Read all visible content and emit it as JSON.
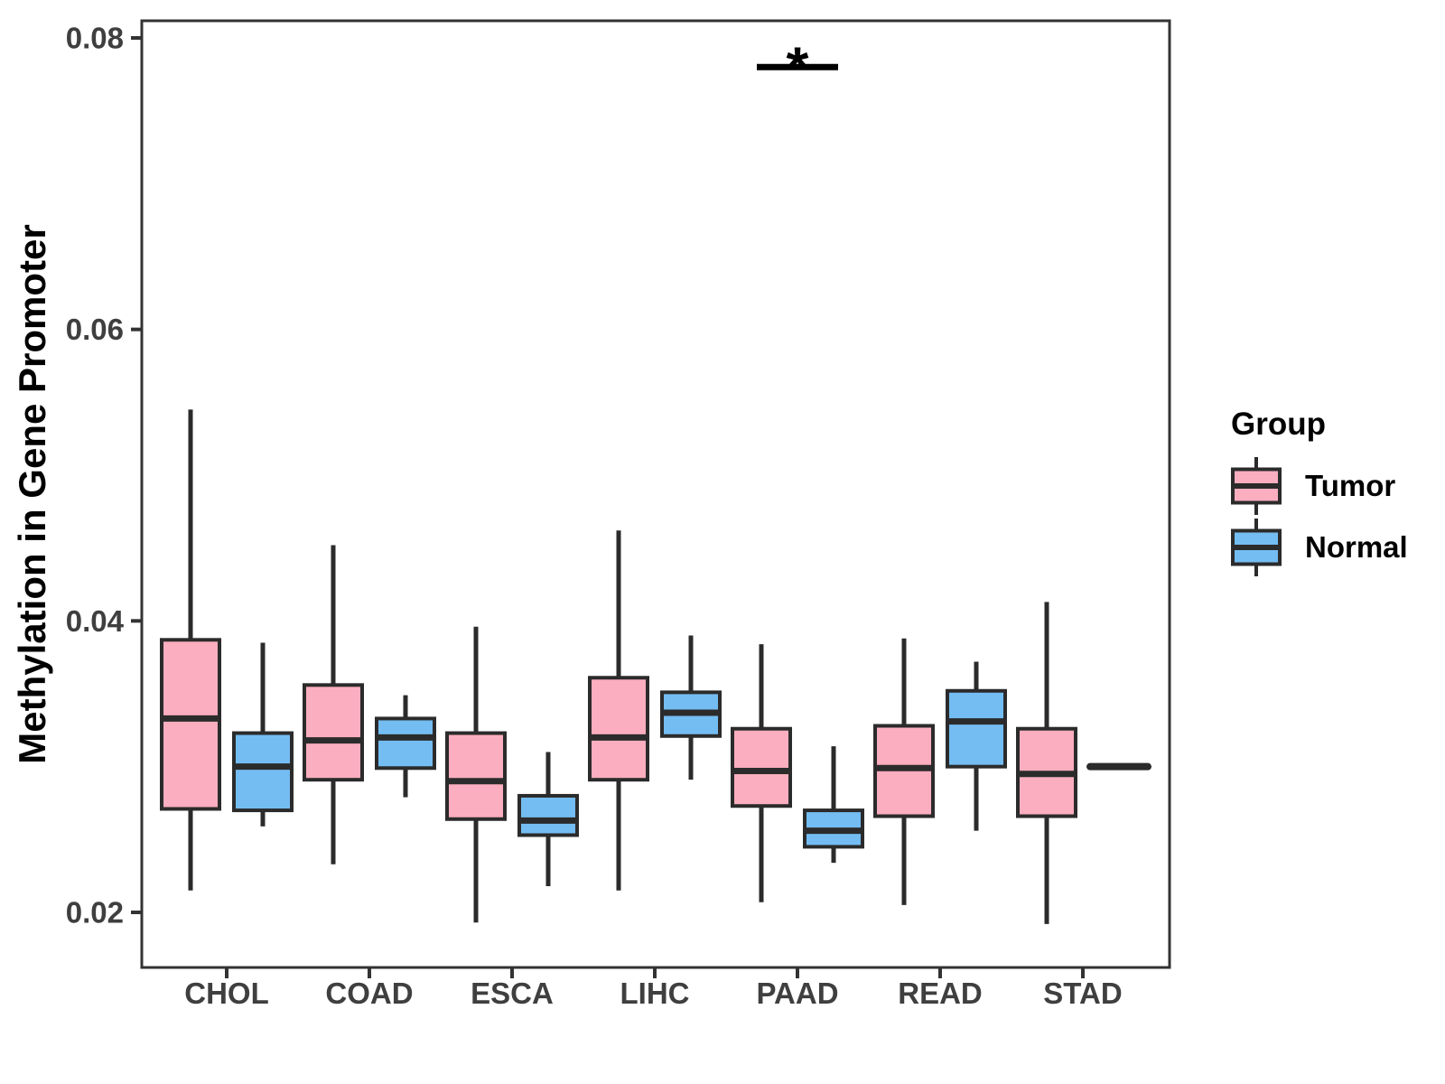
{
  "figure": {
    "y_axis_title": "Methylation in Gene Promoter",
    "legend": {
      "title": "Group",
      "items": [
        {
          "label": "Tumor",
          "color": "#FBAEBF"
        },
        {
          "label": "Normal",
          "color": "#74BDF2"
        }
      ]
    }
  },
  "chart_data": {
    "type": "boxplot",
    "title": "",
    "xlabel": "",
    "ylabel": "Methylation in Gene Promoter",
    "ylim": [
      0.0163,
      0.0812
    ],
    "grid": false,
    "legend_position": "right",
    "y_ticks": [
      {
        "label": "0.08",
        "value": 0.08
      },
      {
        "label": "0.06",
        "value": 0.06
      },
      {
        "label": "0.04",
        "value": 0.04
      },
      {
        "label": "0.02",
        "value": 0.02
      }
    ],
    "categories": [
      "CHOL",
      "COAD",
      "ESCA",
      "LIHC",
      "PAAD",
      "READ",
      "STAD"
    ],
    "series": [
      {
        "name": "Tumor",
        "color": "#FBAEBF",
        "boxes": [
          {
            "category": "CHOL",
            "whisker_low": 0.0215,
            "q1": 0.0271,
            "median": 0.0333,
            "q3": 0.0387,
            "whisker_high": 0.0545
          },
          {
            "category": "COAD",
            "whisker_low": 0.0233,
            "q1": 0.0291,
            "median": 0.0318,
            "q3": 0.0356,
            "whisker_high": 0.0452
          },
          {
            "category": "ESCA",
            "whisker_low": 0.0193,
            "q1": 0.0264,
            "median": 0.029,
            "q3": 0.0323,
            "whisker_high": 0.0396
          },
          {
            "category": "LIHC",
            "whisker_low": 0.0215,
            "q1": 0.0291,
            "median": 0.032,
            "q3": 0.0361,
            "whisker_high": 0.0462
          },
          {
            "category": "PAAD",
            "whisker_low": 0.0207,
            "q1": 0.0273,
            "median": 0.0297,
            "q3": 0.0326,
            "whisker_high": 0.0384
          },
          {
            "category": "READ",
            "whisker_low": 0.0205,
            "q1": 0.0266,
            "median": 0.0299,
            "q3": 0.0328,
            "whisker_high": 0.0388
          },
          {
            "category": "STAD",
            "whisker_low": 0.0192,
            "q1": 0.0266,
            "median": 0.0295,
            "q3": 0.0326,
            "whisker_high": 0.0413
          }
        ]
      },
      {
        "name": "Normal",
        "color": "#74BDF2",
        "boxes": [
          {
            "category": "CHOL",
            "whisker_low": 0.0259,
            "q1": 0.027,
            "median": 0.03,
            "q3": 0.0323,
            "whisker_high": 0.0385
          },
          {
            "category": "COAD",
            "whisker_low": 0.0279,
            "q1": 0.0299,
            "median": 0.032,
            "q3": 0.0333,
            "whisker_high": 0.0349
          },
          {
            "category": "ESCA",
            "whisker_low": 0.0218,
            "q1": 0.0253,
            "median": 0.0263,
            "q3": 0.028,
            "whisker_high": 0.031
          },
          {
            "category": "LIHC",
            "whisker_low": 0.0291,
            "q1": 0.0321,
            "median": 0.0337,
            "q3": 0.0351,
            "whisker_high": 0.039
          },
          {
            "category": "PAAD",
            "whisker_low": 0.0234,
            "q1": 0.0245,
            "median": 0.0256,
            "q3": 0.027,
            "whisker_high": 0.0314
          },
          {
            "category": "READ",
            "whisker_low": 0.0256,
            "q1": 0.03,
            "median": 0.0331,
            "q3": 0.0352,
            "whisker_high": 0.0372
          },
          {
            "category": "STAD",
            "whisker_low": 0.03,
            "q1": 0.03,
            "median": 0.03,
            "q3": 0.03,
            "whisker_high": 0.03
          }
        ]
      }
    ],
    "annotations": [
      {
        "symbol": "*",
        "category": "PAAD",
        "line_value": 0.078
      }
    ]
  }
}
